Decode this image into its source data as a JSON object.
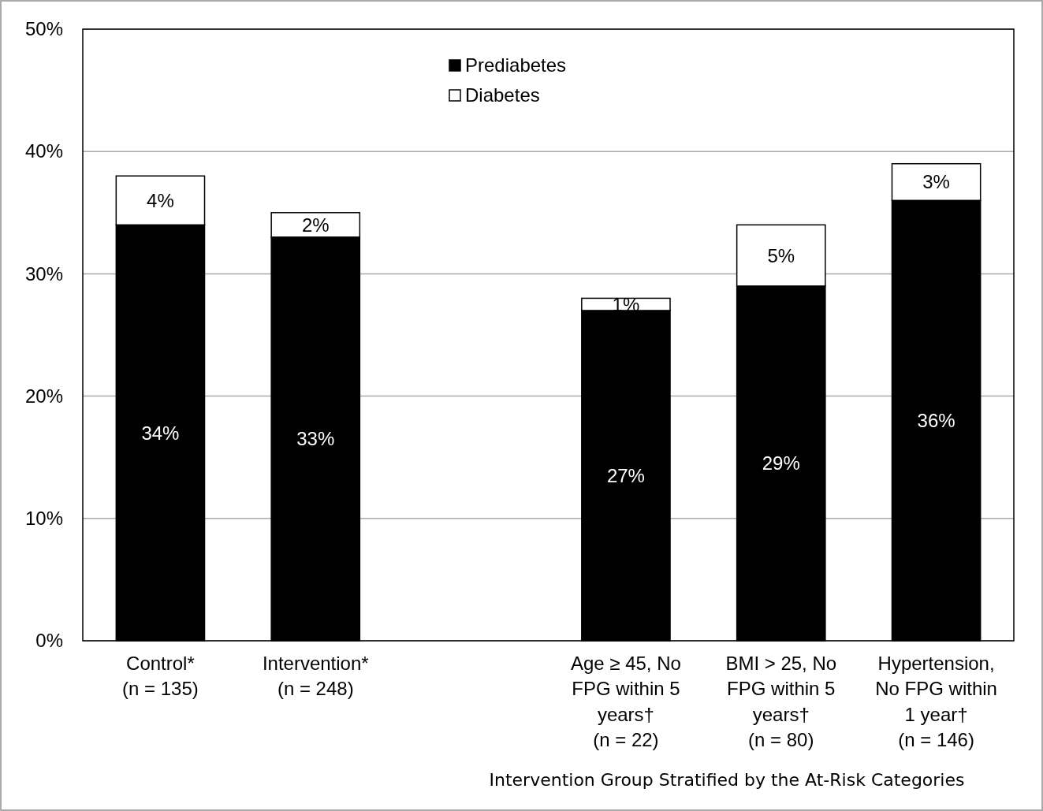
{
  "chart_data": {
    "type": "bar",
    "stacked": true,
    "xlabel": "Intervention Group Stratified by the At-Risk Categories",
    "categories": [
      "Control*\n(n = 135)",
      "Intervention*\n(n = 248)",
      null,
      "Age ≥ 45, No\nFPG within 5\nyears†\n(n = 22)",
      "BMI > 25, No\nFPG within 5\nyears†\n(n = 80)",
      "Hypertension,\nNo FPG within\n1 year†\n(n = 146)"
    ],
    "series": [
      {
        "name": "Prediabetes",
        "color": "#000000",
        "values": [
          34,
          33,
          null,
          27,
          29,
          36
        ],
        "value_labels": [
          "34%",
          "33%",
          null,
          "27%",
          "29%",
          "36%"
        ]
      },
      {
        "name": "Diabetes",
        "color": "#ffffff",
        "values": [
          4,
          2,
          null,
          1,
          5,
          3
        ],
        "value_labels": [
          "4%",
          "2%",
          null,
          "1%",
          "5%",
          "3%"
        ]
      }
    ],
    "ylim": [
      0,
      50
    ],
    "yticks": [
      {
        "value": 0,
        "label": "0%"
      },
      {
        "value": 10,
        "label": "10%"
      },
      {
        "value": 20,
        "label": "20%"
      },
      {
        "value": 30,
        "label": "30%"
      },
      {
        "value": 40,
        "label": "40%"
      },
      {
        "value": 50,
        "label": "50%"
      }
    ],
    "grid": "y",
    "legend": "top"
  }
}
